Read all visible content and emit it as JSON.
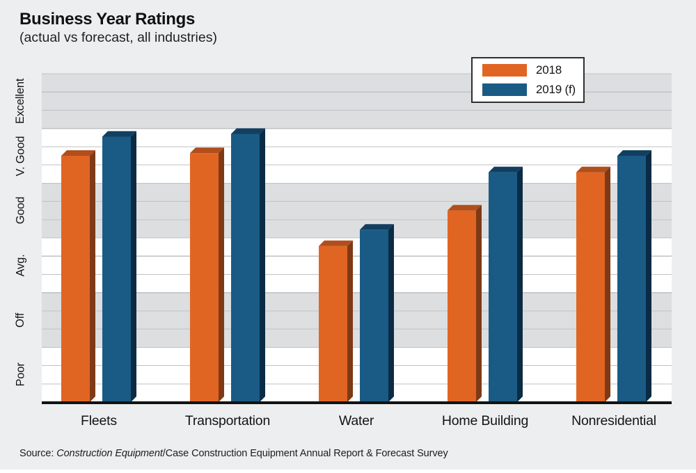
{
  "header": {
    "title": "Business Year Ratings",
    "subtitle": "(actual vs forecast, all industries)"
  },
  "source_line": {
    "prefix": "Source: ",
    "italic_part": "Construction Equipment",
    "rest": "/Case Construction Equipment Annual Report & Forecast Survey"
  },
  "chart_data": {
    "type": "bar",
    "title": "Business Year Ratings",
    "subtitle": "(actual vs forecast, all industries)",
    "categories": [
      "Fleets",
      "Transportation",
      "Water",
      "Home Building",
      "Nonresidential"
    ],
    "y_tick_labels_bottom_to_top": [
      "Poor",
      "Off",
      "Avg.",
      "Good",
      "V. Good",
      "Excellent"
    ],
    "ylim": [
      0,
      6
    ],
    "value_scale_note": "values in rating-band units: 0=axis baseline, each rating label spans 1 unit, gridlines at thirds of each band",
    "series": [
      {
        "name": "2018",
        "color": "#E16522",
        "color_top": "#B04E1C",
        "color_side": "#7E3A16",
        "values": [
          4.5,
          4.55,
          2.85,
          3.5,
          4.2
        ]
      },
      {
        "name": "2019 (f)",
        "color": "#1A5B86",
        "color_top": "#123F60",
        "color_side": "#0B2B45",
        "values": [
          4.85,
          4.9,
          3.15,
          4.2,
          4.5
        ]
      }
    ],
    "legend_position": "top-right",
    "grid": {
      "band_fill_dark": "#DCDEE0",
      "band_fill_light": "#FFFFFF",
      "line_color": "#BFC1C4",
      "axis_color": "#121212",
      "background": "#EDEEF0"
    }
  }
}
